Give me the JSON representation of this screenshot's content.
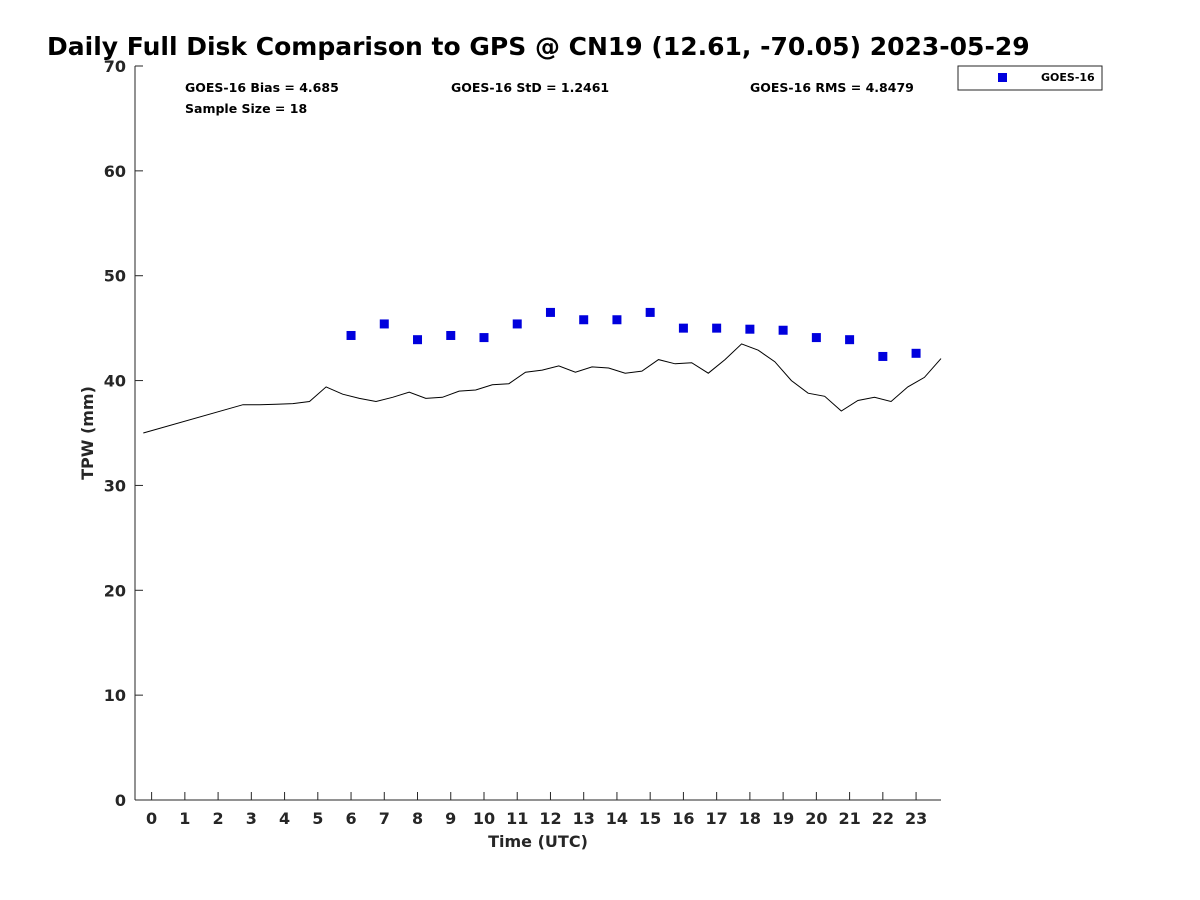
{
  "colors": {
    "goes": "#0000dd",
    "gps": "#000000",
    "axis": "#262626"
  },
  "chart_data": {
    "type": "scatter",
    "title": "Daily Full Disk Comparison to GPS @ CN19 (12.61, -70.05) 2023-05-29",
    "xlabel": "Time (UTC)",
    "ylabel": "TPW (mm)",
    "xlim": [
      -0.5,
      23.75
    ],
    "ylim": [
      0,
      70
    ],
    "xticks": [
      0,
      1,
      2,
      3,
      4,
      5,
      6,
      7,
      8,
      9,
      10,
      11,
      12,
      13,
      14,
      15,
      16,
      17,
      18,
      19,
      20,
      21,
      22,
      23
    ],
    "yticks": [
      0,
      10,
      20,
      30,
      40,
      50,
      60,
      70
    ],
    "grid": false,
    "legend_placement": "top-right",
    "stats": {
      "bias": "GOES-16 Bias = 4.685",
      "sample": "Sample Size = 18",
      "std": "GOES-16 StD = 1.2461",
      "rms": "GOES-16 RMS = 4.8479"
    },
    "series": [
      {
        "name": "GOES-16",
        "style": "markers",
        "x": [
          6,
          7,
          8,
          9,
          10,
          11,
          12,
          13,
          14,
          15,
          16,
          17,
          18,
          19,
          20,
          21,
          22,
          23
        ],
        "y": [
          44.3,
          45.4,
          43.9,
          44.3,
          44.1,
          45.4,
          46.5,
          45.8,
          45.8,
          46.5,
          45.0,
          45.0,
          44.9,
          44.8,
          44.1,
          43.9,
          42.3,
          42.6
        ]
      },
      {
        "style": "line",
        "x": [
          -0.25,
          2.75,
          3.25,
          3.75,
          4.25,
          4.75,
          5.25,
          5.75,
          6.25,
          6.75,
          7.25,
          7.75,
          8.25,
          8.75,
          9.25,
          9.75,
          10.25,
          10.75,
          11.25,
          11.75,
          12.25,
          12.75,
          13.25,
          13.75,
          14.25,
          14.75,
          15.25,
          15.75,
          16.25,
          16.75,
          17.25,
          17.75,
          18.25,
          18.75,
          19.25,
          19.75,
          20.25,
          20.75,
          21.25,
          21.75,
          22.25,
          22.75,
          23.25,
          23.75
        ],
        "y": [
          35.0,
          37.7,
          37.7,
          37.75,
          37.8,
          38.0,
          39.4,
          38.7,
          38.3,
          38.0,
          38.4,
          38.9,
          38.3,
          38.4,
          39.0,
          39.1,
          39.6,
          39.7,
          40.8,
          41.0,
          41.4,
          40.8,
          41.3,
          41.2,
          40.7,
          40.9,
          42.0,
          41.6,
          41.7,
          40.7,
          42.0,
          43.5,
          42.9,
          41.8,
          40.0,
          38.8,
          38.5,
          37.1,
          38.1,
          38.4,
          38.0,
          39.4,
          40.3,
          42.1
        ]
      }
    ]
  }
}
